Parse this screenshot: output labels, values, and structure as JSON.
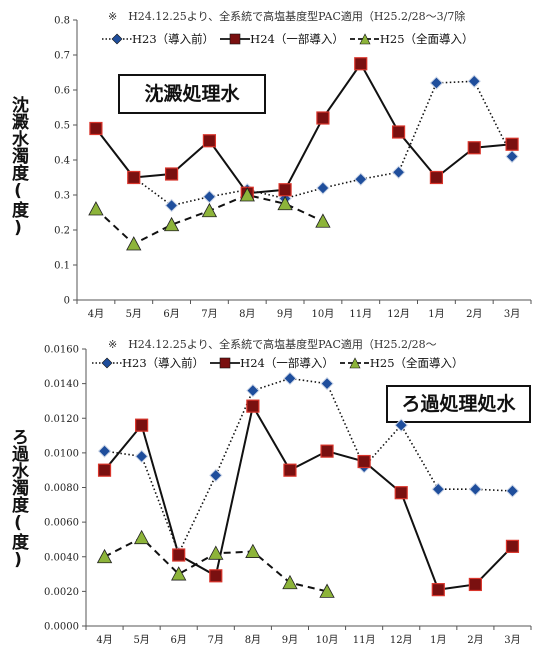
{
  "chart_data": [
    {
      "type": "line",
      "note": "※　H24.12.25より、全系統で高塩基度型PAC適用（H25.2/28～3/7除",
      "box_label": "沈澱処理水",
      "ylabel": "沈澱水濁度(度)",
      "ylim": [
        0,
        0.8
      ],
      "yticks": [
        "0",
        "0.1",
        "0.2",
        "0.3",
        "0.4",
        "0.5",
        "0.6",
        "0.7",
        "0.8"
      ],
      "categories": [
        "4月",
        "5月",
        "6月",
        "7月",
        "8月",
        "9月",
        "10月",
        "11月",
        "12月",
        "1月",
        "2月",
        "3月"
      ],
      "series": [
        {
          "name": "H23（導入前）",
          "style": "dotted",
          "marker": "diamond",
          "color": "#1f4e9c",
          "values": [
            0.49,
            0.35,
            0.27,
            0.295,
            0.315,
            0.29,
            0.32,
            0.345,
            0.365,
            0.62,
            0.625,
            0.41
          ]
        },
        {
          "name": "H24（一部導入）",
          "style": "solid",
          "marker": "square",
          "color": "#7a1010",
          "values": [
            0.49,
            0.35,
            0.36,
            0.455,
            0.305,
            0.315,
            0.52,
            0.675,
            0.48,
            0.35,
            0.435,
            0.445
          ]
        },
        {
          "name": "H25（全面導入）",
          "style": "dashed",
          "marker": "triangle",
          "color": "#8db43a",
          "values": [
            0.26,
            0.16,
            0.215,
            0.255,
            0.3,
            0.275,
            0.225,
            null,
            null,
            null,
            null,
            null
          ]
        }
      ]
    },
    {
      "type": "line",
      "note": "※　H24.12.25より、全系統で高塩基度型PAC適用（H25.2/28～",
      "box_label": "ろ過処理処水",
      "ylabel": "ろ過水濁度(度)",
      "ylim": [
        0,
        0.016
      ],
      "yticks": [
        "0.0000",
        "0.0020",
        "0.0040",
        "0.0060",
        "0.0080",
        "0.0100",
        "0.0120",
        "0.0140",
        "0.0160"
      ],
      "categories": [
        "4月",
        "5月",
        "6月",
        "7月",
        "8月",
        "9月",
        "10月",
        "11月",
        "12月",
        "1月",
        "2月",
        "3月"
      ],
      "series": [
        {
          "name": "H23（導入前）",
          "style": "dotted",
          "marker": "diamond",
          "color": "#1f4e9c",
          "values": [
            0.0101,
            0.0098,
            0.0042,
            0.0087,
            0.0136,
            0.0143,
            0.014,
            0.0092,
            0.0116,
            0.0079,
            0.0079,
            0.0078
          ]
        },
        {
          "name": "H24（一部導入）",
          "style": "solid",
          "marker": "square",
          "color": "#7a1010",
          "values": [
            0.009,
            0.0116,
            0.0041,
            0.0029,
            0.0127,
            0.009,
            0.0101,
            0.0095,
            0.0077,
            0.0021,
            0.0024,
            0.0046
          ]
        },
        {
          "name": "H25（全面導入）",
          "style": "dashed",
          "marker": "triangle",
          "color": "#8db43a",
          "values": [
            0.004,
            0.0051,
            0.003,
            0.0042,
            0.0043,
            0.0025,
            0.002,
            null,
            null,
            null,
            null,
            null
          ]
        }
      ]
    }
  ]
}
